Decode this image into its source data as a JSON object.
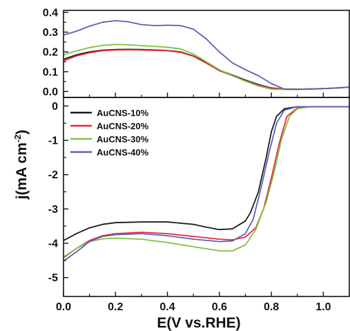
{
  "chart_data": {
    "type": "line",
    "xlabel": "E(V vs.RHE)",
    "ylabel": "j(mA cm",
    "ylabel_sup": "-2",
    "ylabel_close": ")",
    "xlim": [
      0.0,
      1.1
    ],
    "x_ticks": [
      "0.0",
      "0.2",
      "0.4",
      "0.6",
      "0.8",
      "1.0"
    ],
    "legend_position": "top-left of lower panel",
    "colors": {
      "AuCNS-10%": "#1a1a1a",
      "AuCNS-20%": "#e8253b",
      "AuCNS-30%": "#7cc242",
      "AuCNS-40%": "#5a5fb8"
    },
    "panels": [
      {
        "id": "upper",
        "ylim": [
          -0.03,
          0.41
        ],
        "y_ticks": [
          "0.4",
          "0.3",
          "0.2",
          "0.1",
          "0.0"
        ],
        "series": [
          {
            "name": "AuCNS-10%",
            "points": [
              [
                0.0,
                0.163
              ],
              [
                0.05,
                0.185
              ],
              [
                0.1,
                0.2
              ],
              [
                0.15,
                0.209
              ],
              [
                0.2,
                0.212
              ],
              [
                0.25,
                0.213
              ],
              [
                0.3,
                0.212
              ],
              [
                0.35,
                0.21
              ],
              [
                0.4,
                0.207
              ],
              [
                0.45,
                0.2
              ],
              [
                0.5,
                0.18
              ],
              [
                0.55,
                0.145
              ],
              [
                0.6,
                0.108
              ],
              [
                0.65,
                0.083
              ],
              [
                0.7,
                0.058
              ],
              [
                0.75,
                0.035
              ],
              [
                0.8,
                0.018
              ],
              [
                0.85,
                0.012
              ],
              [
                0.9,
                0.012
              ],
              [
                0.95,
                0.013
              ],
              [
                1.0,
                0.015
              ],
              [
                1.05,
                0.018
              ],
              [
                1.1,
                0.022
              ]
            ]
          },
          {
            "name": "AuCNS-20%",
            "points": [
              [
                0.0,
                0.155
              ],
              [
                0.05,
                0.18
              ],
              [
                0.1,
                0.196
              ],
              [
                0.15,
                0.206
              ],
              [
                0.2,
                0.21
              ],
              [
                0.25,
                0.211
              ],
              [
                0.3,
                0.21
              ],
              [
                0.35,
                0.208
              ],
              [
                0.4,
                0.206
              ],
              [
                0.45,
                0.198
              ],
              [
                0.5,
                0.178
              ],
              [
                0.55,
                0.143
              ],
              [
                0.6,
                0.105
              ],
              [
                0.65,
                0.08
              ],
              [
                0.7,
                0.055
              ],
              [
                0.75,
                0.032
              ],
              [
                0.8,
                0.016
              ],
              [
                0.85,
                0.011
              ],
              [
                0.9,
                0.012
              ],
              [
                0.95,
                0.013
              ],
              [
                1.0,
                0.015
              ],
              [
                1.05,
                0.018
              ],
              [
                1.1,
                0.022
              ]
            ]
          },
          {
            "name": "AuCNS-30%",
            "points": [
              [
                0.0,
                0.185
              ],
              [
                0.05,
                0.205
              ],
              [
                0.1,
                0.222
              ],
              [
                0.15,
                0.233
              ],
              [
                0.2,
                0.238
              ],
              [
                0.25,
                0.236
              ],
              [
                0.3,
                0.232
              ],
              [
                0.35,
                0.228
              ],
              [
                0.4,
                0.224
              ],
              [
                0.45,
                0.215
              ],
              [
                0.5,
                0.19
              ],
              [
                0.55,
                0.15
              ],
              [
                0.6,
                0.11
              ],
              [
                0.65,
                0.08
              ],
              [
                0.7,
                0.052
              ],
              [
                0.75,
                0.028
              ],
              [
                0.8,
                0.012
              ],
              [
                0.85,
                0.01
              ],
              [
                0.9,
                0.011
              ],
              [
                0.95,
                0.013
              ],
              [
                1.0,
                0.015
              ],
              [
                1.05,
                0.018
              ],
              [
                1.1,
                0.022
              ]
            ]
          },
          {
            "name": "AuCNS-40%",
            "points": [
              [
                0.0,
                0.285
              ],
              [
                0.05,
                0.305
              ],
              [
                0.1,
                0.33
              ],
              [
                0.15,
                0.35
              ],
              [
                0.2,
                0.358
              ],
              [
                0.25,
                0.352
              ],
              [
                0.3,
                0.338
              ],
              [
                0.35,
                0.333
              ],
              [
                0.4,
                0.335
              ],
              [
                0.45,
                0.333
              ],
              [
                0.5,
                0.315
              ],
              [
                0.55,
                0.265
              ],
              [
                0.6,
                0.2
              ],
              [
                0.65,
                0.145
              ],
              [
                0.7,
                0.11
              ],
              [
                0.75,
                0.08
              ],
              [
                0.8,
                0.04
              ],
              [
                0.85,
                0.012
              ],
              [
                0.9,
                0.01
              ],
              [
                0.95,
                0.012
              ],
              [
                1.0,
                0.014
              ],
              [
                1.05,
                0.018
              ],
              [
                1.1,
                0.022
              ]
            ]
          }
        ]
      },
      {
        "id": "lower",
        "ylim": [
          -5.55,
          0.25
        ],
        "y_ticks": [
          "0",
          "-1",
          "-2",
          "-3",
          "-4",
          "-5"
        ],
        "series": [
          {
            "name": "AuCNS-10%",
            "points": [
              [
                0.0,
                -3.92
              ],
              [
                0.05,
                -3.72
              ],
              [
                0.1,
                -3.55
              ],
              [
                0.15,
                -3.45
              ],
              [
                0.2,
                -3.4
              ],
              [
                0.3,
                -3.38
              ],
              [
                0.4,
                -3.38
              ],
              [
                0.5,
                -3.45
              ],
              [
                0.55,
                -3.53
              ],
              [
                0.6,
                -3.6
              ],
              [
                0.65,
                -3.58
              ],
              [
                0.7,
                -3.35
              ],
              [
                0.72,
                -3.1
              ],
              [
                0.75,
                -2.5
              ],
              [
                0.78,
                -1.5
              ],
              [
                0.8,
                -0.75
              ],
              [
                0.82,
                -0.3
              ],
              [
                0.85,
                -0.08
              ],
              [
                0.9,
                -0.02
              ],
              [
                1.0,
                -0.02
              ],
              [
                1.1,
                -0.02
              ]
            ]
          },
          {
            "name": "AuCNS-20%",
            "points": [
              [
                0.0,
                -4.42
              ],
              [
                0.05,
                -4.15
              ],
              [
                0.1,
                -3.92
              ],
              [
                0.15,
                -3.78
              ],
              [
                0.2,
                -3.72
              ],
              [
                0.3,
                -3.68
              ],
              [
                0.4,
                -3.72
              ],
              [
                0.5,
                -3.8
              ],
              [
                0.6,
                -3.88
              ],
              [
                0.65,
                -3.9
              ],
              [
                0.7,
                -3.82
              ],
              [
                0.74,
                -3.55
              ],
              [
                0.77,
                -3.0
              ],
              [
                0.8,
                -2.1
              ],
              [
                0.83,
                -1.1
              ],
              [
                0.86,
                -0.3
              ],
              [
                0.9,
                -0.06
              ],
              [
                0.95,
                -0.02
              ],
              [
                1.0,
                -0.02
              ],
              [
                1.1,
                -0.02
              ]
            ]
          },
          {
            "name": "AuCNS-30%",
            "points": [
              [
                0.0,
                -4.4
              ],
              [
                0.05,
                -4.15
              ],
              [
                0.1,
                -3.95
              ],
              [
                0.15,
                -3.87
              ],
              [
                0.2,
                -3.85
              ],
              [
                0.3,
                -3.88
              ],
              [
                0.4,
                -3.98
              ],
              [
                0.5,
                -4.1
              ],
              [
                0.6,
                -4.22
              ],
              [
                0.65,
                -4.22
              ],
              [
                0.7,
                -4.05
              ],
              [
                0.74,
                -3.6
              ],
              [
                0.78,
                -2.8
              ],
              [
                0.81,
                -1.95
              ],
              [
                0.84,
                -0.95
              ],
              [
                0.87,
                -0.3
              ],
              [
                0.9,
                -0.08
              ],
              [
                0.95,
                -0.02
              ],
              [
                1.0,
                -0.02
              ],
              [
                1.1,
                -0.02
              ]
            ]
          },
          {
            "name": "AuCNS-40%",
            "points": [
              [
                0.0,
                -4.52
              ],
              [
                0.05,
                -4.25
              ],
              [
                0.1,
                -3.95
              ],
              [
                0.15,
                -3.8
              ],
              [
                0.2,
                -3.75
              ],
              [
                0.3,
                -3.72
              ],
              [
                0.4,
                -3.78
              ],
              [
                0.5,
                -3.88
              ],
              [
                0.6,
                -3.95
              ],
              [
                0.65,
                -3.93
              ],
              [
                0.7,
                -3.72
              ],
              [
                0.73,
                -3.3
              ],
              [
                0.76,
                -2.4
              ],
              [
                0.79,
                -1.4
              ],
              [
                0.82,
                -0.5
              ],
              [
                0.85,
                -0.12
              ],
              [
                0.9,
                -0.02
              ],
              [
                1.0,
                -0.02
              ],
              [
                1.1,
                -0.02
              ]
            ]
          }
        ]
      }
    ]
  }
}
